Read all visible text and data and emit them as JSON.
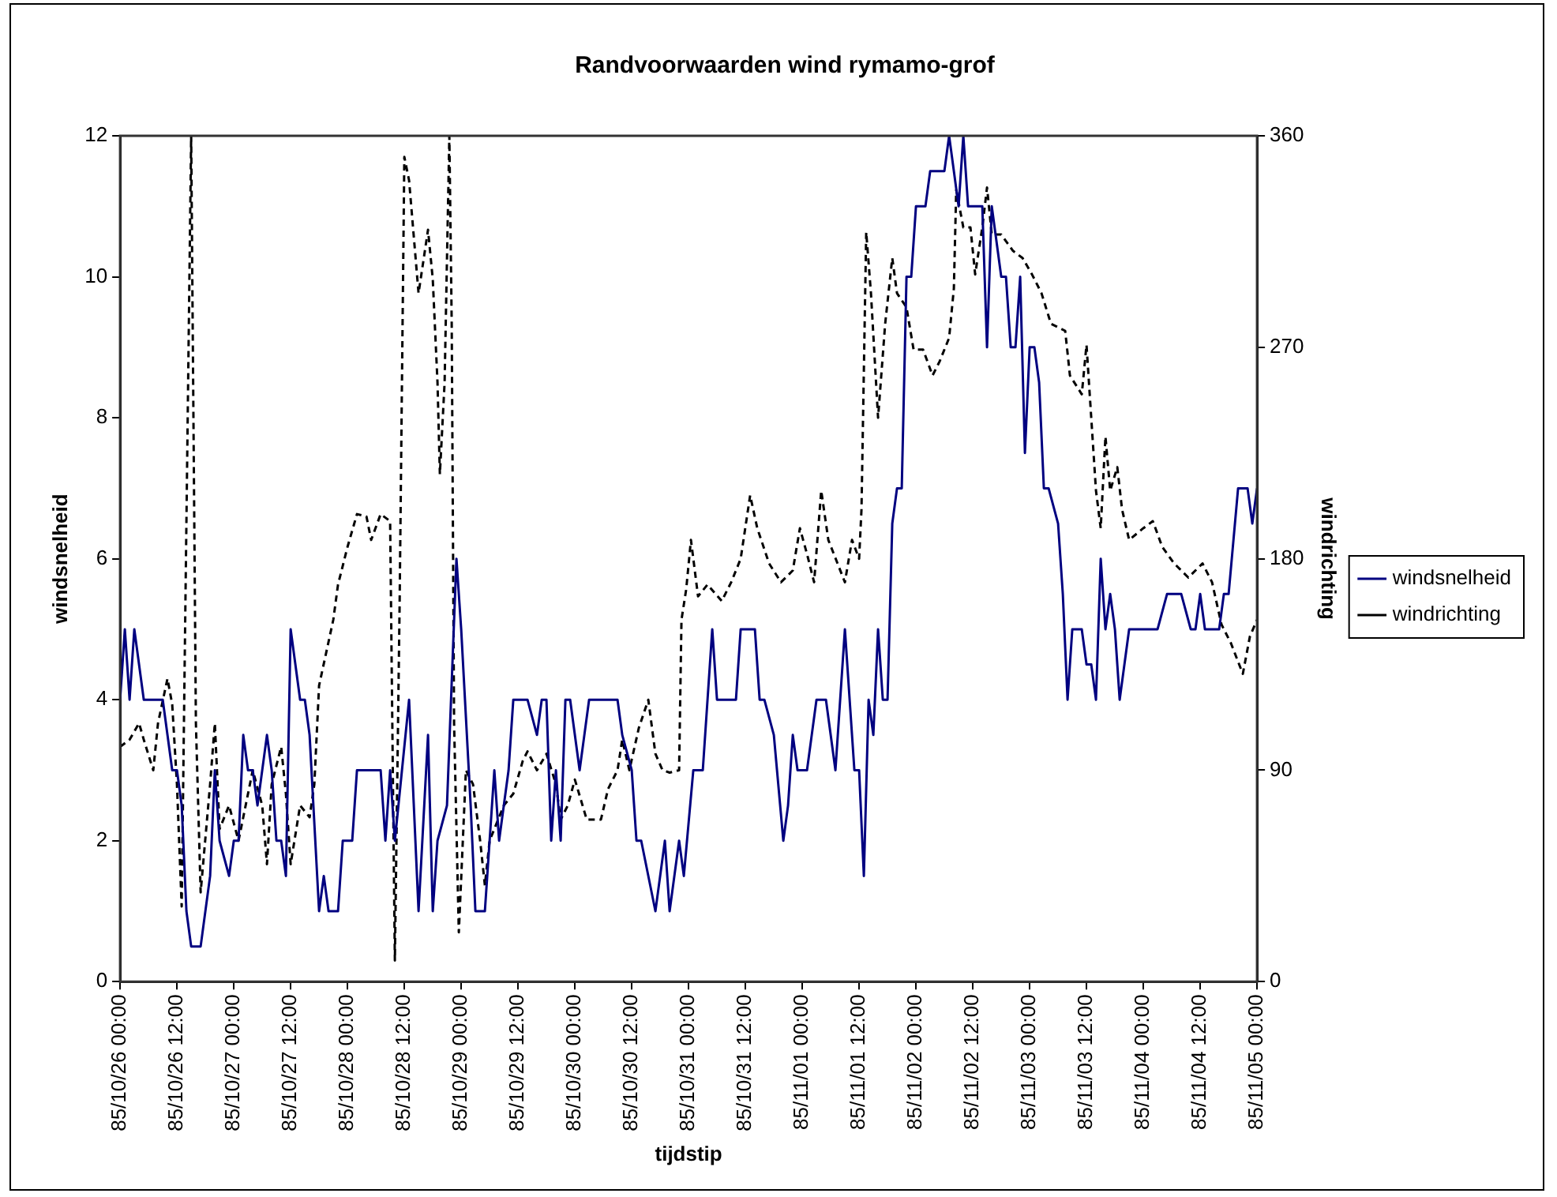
{
  "chart_data": {
    "type": "line",
    "title": "Randvoorwaarden wind rymamo-grof",
    "xlabel": "tijdstip",
    "ylabel": "windsnelheid",
    "y2label": "windrichting",
    "xlim": [
      "--10-26T00:00",
      "--11-05T00:00"
    ],
    "xticks": [
      {
        "value": "--10-26T00:00",
        "label": "85/10/26 00:00"
      },
      {
        "value": "--10-26T12:00",
        "label": "85/10/26 12:00"
      },
      {
        "value": "--10-27T00:00",
        "label": "85/10/27 00:00"
      },
      {
        "value": "--10-27T12:00",
        "label": "85/10/27 12:00"
      },
      {
        "value": "--10-28T00:00",
        "label": "85/10/28 00:00"
      },
      {
        "value": "--10-28T12:00",
        "label": "85/10/28 12:00"
      },
      {
        "value": "--10-29T00:00",
        "label": "85/10/29 00:00"
      },
      {
        "value": "--10-29T12:00",
        "label": "85/10/29 12:00"
      },
      {
        "value": "--10-30T00:00",
        "label": "85/10/30 00:00"
      },
      {
        "value": "--10-30T12:00",
        "label": "85/10/30 12:00"
      },
      {
        "value": "--10-31T00:00",
        "label": "85/10/31 00:00"
      },
      {
        "value": "--10-31T12:00",
        "label": "85/10/31 12:00"
      },
      {
        "value": "--11-01T00:00",
        "label": "85/11/01 00:00"
      },
      {
        "value": "--11-01T12:00",
        "label": "85/11/01 12:00"
      },
      {
        "value": "--11-02T00:00",
        "label": "85/11/02 00:00"
      },
      {
        "value": "--11-02T12:00",
        "label": "85/11/02 12:00"
      },
      {
        "value": "--11-03T00:00",
        "label": "85/11/03 00:00"
      },
      {
        "value": "--11-03T12:00",
        "label": "85/11/03 12:00"
      },
      {
        "value": "--11-04T00:00",
        "label": "85/11/04 00:00"
      },
      {
        "value": "--11-04T12:00",
        "label": "85/11/04 12:00"
      },
      {
        "value": "--11-05T00:00",
        "label": "85/11/05 00:00"
      }
    ],
    "ylim": [
      0,
      12
    ],
    "yticks": [
      0,
      2,
      4,
      6,
      8,
      10,
      12
    ],
    "y2lim": [
      0,
      360
    ],
    "y2ticks": [
      0,
      90,
      180,
      270,
      360
    ],
    "grid": false,
    "legend": "right",
    "marker": "none",
    "series": [
      {
        "name": "windsnelheid",
        "color": "#000080",
        "axis": "y",
        "line_style": "solid",
        "x": [
          "--10-26T00:00",
          "--10-26T01:00",
          "--10-26T02:00",
          "--10-26T03:00",
          "--10-26T05:00",
          "--10-26T09:00",
          "--10-26T11:00",
          "--10-26T12:00",
          "--10-26T13:00",
          "--10-26T14:00",
          "--10-26T15:00",
          "--10-26T17:00",
          "--10-26T19:00",
          "--10-26T20:00",
          "--10-26T21:00",
          "--10-26T23:00",
          "--10-27T00:00",
          "--10-27T01:00",
          "--10-27T02:00",
          "--10-27T03:00",
          "--10-27T04:00",
          "--10-27T05:00",
          "--10-27T07:00",
          "--10-27T08:00",
          "--10-27T09:00",
          "--10-27T10:00",
          "--10-27T11:00",
          "--10-27T12:00",
          "--10-27T14:00",
          "--10-27T15:00",
          "--10-27T16:00",
          "--10-27T18:00",
          "--10-27T19:00",
          "--10-27T20:00",
          "--10-27T22:00",
          "--10-27T23:00",
          "--10-28T01:00",
          "--10-28T02:00",
          "--10-28T07:00",
          "--10-28T08:00",
          "--10-28T09:00",
          "--10-28T10:00",
          "--10-28T13:00",
          "--10-28T15:00",
          "--10-28T17:00",
          "--10-28T18:00",
          "--10-28T19:00",
          "--10-28T21:00",
          "--10-28T23:00",
          "--10-29T00:00",
          "--10-29T02:00",
          "--10-29T03:00",
          "--10-29T05:00",
          "--10-29T07:00",
          "--10-29T08:00",
          "--10-29T10:00",
          "--10-29T11:00",
          "--10-29T14:00",
          "--10-29T16:00",
          "--10-29T17:00",
          "--10-29T18:00",
          "--10-29T19:00",
          "--10-29T20:00",
          "--10-29T21:00",
          "--10-29T22:00",
          "--10-29T23:00",
          "--10-30T01:00",
          "--10-30T02:00",
          "--10-30T03:00",
          "--10-30T09:00",
          "--10-30T10:00",
          "--10-30T12:00",
          "--10-30T13:00",
          "--10-30T14:00",
          "--10-30T17:00",
          "--10-30T19:00",
          "--10-30T20:00",
          "--10-30T22:00",
          "--10-30T23:00",
          "--10-31T01:00",
          "--10-31T03:00",
          "--10-31T05:00",
          "--10-31T06:00",
          "--10-31T10:00",
          "--10-31T11:00",
          "--10-31T14:00",
          "--10-31T15:00",
          "--10-31T16:00",
          "--10-31T18:00",
          "--10-31T20:00",
          "--10-31T21:00",
          "--10-31T22:00",
          "--10-31T23:00",
          "--11-01T01:00",
          "--11-01T02:00",
          "--11-01T03:00",
          "--11-01T05:00",
          "--11-01T07:00",
          "--11-01T09:00",
          "--11-01T11:00",
          "--11-01T12:00",
          "--11-01T13:00",
          "--11-01T14:00",
          "--11-01T15:00",
          "--11-01T16:00",
          "--11-01T17:00",
          "--11-01T18:00",
          "--11-01T19:00",
          "--11-01T20:00",
          "--11-01T21:00",
          "--11-01T22:00",
          "--11-01T23:00",
          "--11-02T00:00",
          "--11-02T02:00",
          "--11-02T03:00",
          "--11-02T06:00",
          "--11-02T07:00",
          "--11-02T09:00",
          "--11-02T10:00",
          "--11-02T11:00",
          "--11-02T14:00",
          "--11-02T15:00",
          "--11-02T16:00",
          "--11-02T18:00",
          "--11-02T19:00",
          "--11-02T20:00",
          "--11-02T21:00",
          "--11-02T22:00",
          "--11-02T23:00",
          "--11-03T00:00",
          "--11-03T01:00",
          "--11-03T02:00",
          "--11-03T03:00",
          "--11-03T04:00",
          "--11-03T06:00",
          "--11-03T07:00",
          "--11-03T08:00",
          "--11-03T09:00",
          "--11-03T11:00",
          "--11-03T12:00",
          "--11-03T13:00",
          "--11-03T14:00",
          "--11-03T15:00",
          "--11-03T16:00",
          "--11-03T17:00",
          "--11-03T18:00",
          "--11-03T19:00",
          "--11-03T21:00",
          "--11-04T03:00",
          "--11-04T05:00",
          "--11-04T08:00",
          "--11-04T10:00",
          "--11-04T11:00",
          "--11-04T12:00",
          "--11-04T13:00",
          "--11-04T16:00",
          "--11-04T17:00",
          "--11-04T18:00",
          "--11-04T20:00",
          "--11-04T22:00",
          "--11-04T23:00",
          "--11-05T00:00"
        ],
        "values": [
          4,
          5,
          4,
          5,
          4,
          4,
          3,
          3,
          2.5,
          1,
          0.5,
          0.5,
          1.5,
          3,
          2,
          1.5,
          2,
          2,
          3.5,
          3,
          3,
          2.5,
          3.5,
          3,
          2,
          2,
          1.5,
          5,
          4,
          4,
          3.5,
          1,
          1.5,
          1,
          1,
          2,
          2,
          3,
          3,
          2,
          3,
          2,
          4,
          1,
          3.5,
          1,
          2,
          2.5,
          6,
          5,
          2.5,
          1,
          1,
          3,
          2,
          3,
          4,
          4,
          3.5,
          4,
          4,
          2,
          3,
          2,
          4,
          4,
          3,
          3.5,
          4,
          4,
          3.5,
          3,
          2,
          2,
          1,
          2,
          1,
          2,
          1.5,
          3,
          3,
          5,
          4,
          4,
          5,
          5,
          4,
          4,
          3.5,
          2,
          2.5,
          3.5,
          3,
          3,
          3.5,
          4,
          4,
          3,
          5,
          3,
          3,
          1.5,
          4,
          3.5,
          5,
          4,
          4,
          6.5,
          7,
          7,
          10,
          10,
          11,
          11,
          11.5,
          11.5,
          12,
          11,
          12,
          11,
          11,
          9,
          11,
          10,
          10,
          9,
          9,
          10,
          7.5,
          9,
          9,
          8.5,
          7,
          7,
          6.5,
          5.5,
          4,
          5,
          5,
          4.5,
          4.5,
          4,
          6,
          5,
          5.5,
          5,
          4,
          5,
          5,
          5.5,
          5.5,
          5,
          5,
          5.5,
          5,
          5,
          5.5,
          5.5,
          7,
          7,
          6.5,
          7
        ]
      },
      {
        "name": "windrichting",
        "color": "#000000",
        "axis": "y2",
        "line_style": "dashed",
        "x": [
          "--10-26T00:00",
          "--10-26T02:00",
          "--10-26T04:00",
          "--10-26T05:00",
          "--10-26T07:00",
          "--10-26T08:00",
          "--10-26T10:00",
          "--10-26T11:00",
          "--10-26T12:00",
          "--10-26T13:00",
          "--10-26T15:00",
          "--10-26T16:00",
          "--10-26T17:00",
          "--10-26T19:00",
          "--10-26T20:00",
          "--10-26T21:00",
          "--10-26T23:00",
          "--10-27T01:00",
          "--10-27T02:00",
          "--10-27T04:00",
          "--10-27T06:00",
          "--10-27T07:00",
          "--10-27T08:00",
          "--10-27T10:00",
          "--10-27T11:00",
          "--10-27T12:00",
          "--10-27T14:00",
          "--10-27T16:00",
          "--10-27T17:00",
          "--10-27T18:00",
          "--10-27T21:00",
          "--10-27T22:00",
          "--10-28T00:00",
          "--10-28T02:00",
          "--10-28T04:00",
          "--10-28T05:00",
          "--10-28T07:00",
          "--10-28T09:00",
          "--10-28T10:00",
          "--10-28T11:00",
          "--10-28T12:00",
          "--10-28T13:00",
          "--10-28T15:00",
          "--10-28T17:00",
          "--10-28T18:00",
          "--10-28T19:00",
          "--10-28T19:30",
          "--10-28T20:30",
          "--10-28T21:30",
          "--10-28T22:00",
          "--10-28T22:30",
          "--10-28T23:30",
          "--10-29T01:00",
          "--10-29T02:30",
          "--10-29T04:00",
          "--10-29T05:00",
          "--10-29T06:00",
          "--10-29T09:00",
          "--10-29T11:00",
          "--10-29T13:00",
          "--10-29T14:00",
          "--10-29T16:00",
          "--10-29T18:00",
          "--10-29T20:00",
          "--10-29T21:00",
          "--10-29T22:30",
          "--10-30T00:00",
          "--10-30T02:30",
          "--10-30T05:30",
          "--10-30T07:00",
          "--10-30T09:00",
          "--10-30T10:00",
          "--10-30T11:30",
          "--10-30T13:30",
          "--10-30T15:30",
          "--10-30T17:00",
          "--10-30T18:30",
          "--10-30T20:00",
          "--10-30T22:00",
          "--10-30T22:30",
          "--10-30T23:30",
          "--10-31T00:30",
          "--10-31T02:00",
          "--10-31T04:00",
          "--10-31T07:00",
          "--10-31T09:00",
          "--10-31T11:00",
          "--10-31T13:00",
          "--10-31T14:30",
          "--10-31T17:00",
          "--10-31T19:30",
          "--10-31T22:00",
          "--10-31T23:30",
          "--11-01T01:00",
          "--11-01T02:30",
          "--11-01T04:00",
          "--11-01T05:30",
          "--11-01T09:00",
          "--11-01T10:30",
          "--11-01T12:00",
          "--11-01T12:30",
          "--11-01T13:30",
          "--11-01T14:30",
          "--11-01T16:00",
          "--11-01T17:30",
          "--11-01T19:00",
          "--11-01T20:00",
          "--11-01T22:00",
          "--11-01T23:30",
          "--11-02T01:30",
          "--11-02T03:30",
          "--11-02T05:00",
          "--11-02T07:00",
          "--11-02T08:00",
          "--11-02T08:30",
          "--11-02T10:00",
          "--11-02T11:30",
          "--11-02T12:30",
          "--11-02T14:00",
          "--11-02T15:00",
          "--11-02T16:00",
          "--11-02T18:00",
          "--11-02T20:30",
          "--11-02T22:30",
          "--11-03T00:30",
          "--11-03T02:30",
          "--11-03T04:30",
          "--11-03T07:30",
          "--11-03T08:30",
          "--11-03T11:00",
          "--11-03T12:00",
          "--11-03T13:00",
          "--11-03T14:00",
          "--11-03T15:00",
          "--11-03T16:00",
          "--11-03T17:00",
          "--11-03T18:30",
          "--11-03T19:30",
          "--11-03T21:00",
          "--11-04T00:00",
          "--11-04T02:00",
          "--11-04T04:00",
          "--11-04T06:30",
          "--11-04T09:30",
          "--11-04T12:30",
          "--11-04T14:30",
          "--11-04T16:30",
          "--11-04T18:30",
          "--11-04T21:00",
          "--11-04T22:30",
          "--11-05T00:00"
        ],
        "values": [
          100,
          103,
          110,
          103,
          90,
          110,
          129,
          118,
          84,
          32,
          360,
          110,
          38,
          84,
          110,
          65,
          75,
          60,
          70,
          90,
          75,
          50,
          84,
          100,
          80,
          50,
          75,
          70,
          84,
          126,
          154,
          169,
          185,
          199,
          198,
          188,
          199,
          196,
          9,
          160,
          351,
          341,
          293,
          320,
          299,
          255,
          216,
          255,
          360,
          280,
          110,
          21,
          90,
          84,
          60,
          41,
          60,
          75,
          80,
          94,
          98,
          90,
          97,
          84,
          69,
          75,
          86,
          69,
          69,
          82,
          90,
          103,
          90,
          108,
          120,
          97,
          90,
          89,
          90,
          154,
          167,
          188,
          164,
          169,
          162,
          170,
          180,
          207,
          193,
          178,
          170,
          175,
          193,
          182,
          170,
          209,
          188,
          170,
          188,
          180,
          201,
          319,
          293,
          240,
          280,
          308,
          293,
          287,
          269,
          269,
          258,
          264,
          274,
          295,
          337,
          321,
          321,
          301,
          321,
          338,
          318,
          318,
          311,
          308,
          301,
          293,
          280,
          277,
          258,
          250,
          271,
          240,
          209,
          193,
          232,
          209,
          219,
          201,
          188,
          193,
          196,
          185,
          178,
          172,
          178,
          170,
          152,
          144,
          131,
          147,
          154
        ]
      }
    ]
  }
}
